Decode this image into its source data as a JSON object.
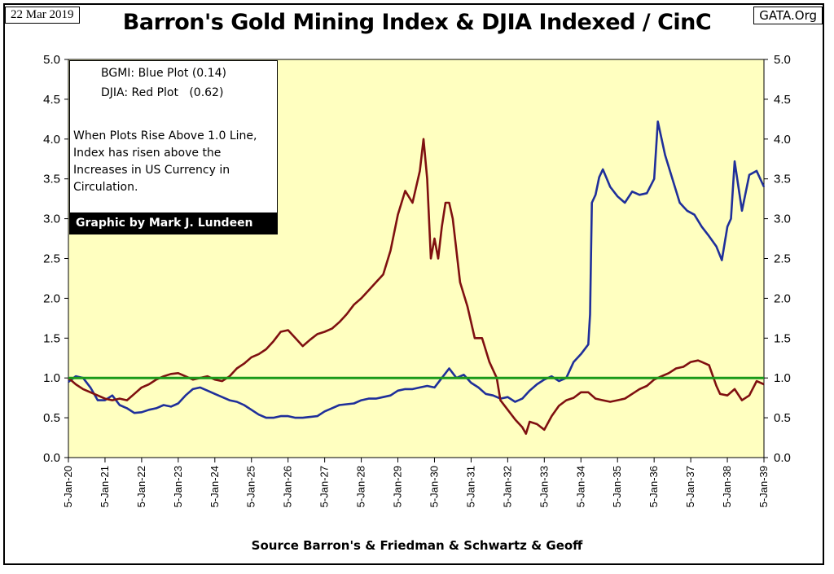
{
  "header": {
    "date": "22 Mar 2019",
    "title": "Barron's Gold Mining Index & DJIA Indexed / CinC",
    "site": "GATA.Org"
  },
  "legend": {
    "line1": "BGMI: Blue Plot (0.14)",
    "line2": "DJIA: Red Plot   (0.62)",
    "note": "When Plots Rise Above 1.0 Line, Index has risen above the Increases in US Currency in Circulation.",
    "credit": "Graphic by Mark J. Lundeen"
  },
  "footer": {
    "source": "Source Barron's & Friedman & Schwartz & Geoff"
  },
  "colors": {
    "plot_bg": "#ffffc0",
    "bgmi": "#1f2f9a",
    "djia": "#7f1010",
    "reference_line": "#1a9a1a"
  },
  "chart_data": {
    "type": "line",
    "title": "Barron's Gold Mining Index & DJIA Indexed / CinC",
    "xlabel": "",
    "ylabel": "",
    "x_tick_labels": [
      "5-Jan-20",
      "5-Jan-21",
      "5-Jan-22",
      "5-Jan-23",
      "5-Jan-24",
      "5-Jan-25",
      "5-Jan-26",
      "5-Jan-27",
      "5-Jan-28",
      "5-Jan-29",
      "5-Jan-30",
      "5-Jan-31",
      "5-Jan-32",
      "5-Jan-33",
      "5-Jan-34",
      "5-Jan-35",
      "5-Jan-36",
      "5-Jan-37",
      "5-Jan-38",
      "5-Jan-39"
    ],
    "y_tick_labels": [
      "0.0",
      "0.5",
      "1.0",
      "1.5",
      "2.0",
      "2.5",
      "3.0",
      "3.5",
      "4.0",
      "4.5",
      "5.0"
    ],
    "xlim": [
      1920,
      1939
    ],
    "ylim": [
      0,
      5
    ],
    "grid": false,
    "reference_line": 1.0,
    "series": [
      {
        "name": "BGMI",
        "color": "#1f2f9a",
        "points": [
          [
            1920.0,
            0.95
          ],
          [
            1920.2,
            1.02
          ],
          [
            1920.4,
            1.0
          ],
          [
            1920.6,
            0.88
          ],
          [
            1920.8,
            0.72
          ],
          [
            1921.0,
            0.72
          ],
          [
            1921.2,
            0.78
          ],
          [
            1921.4,
            0.66
          ],
          [
            1921.6,
            0.62
          ],
          [
            1921.8,
            0.56
          ],
          [
            1922.0,
            0.57
          ],
          [
            1922.2,
            0.6
          ],
          [
            1922.4,
            0.62
          ],
          [
            1922.6,
            0.66
          ],
          [
            1922.8,
            0.64
          ],
          [
            1923.0,
            0.68
          ],
          [
            1923.2,
            0.78
          ],
          [
            1923.4,
            0.86
          ],
          [
            1923.6,
            0.88
          ],
          [
            1923.8,
            0.84
          ],
          [
            1924.0,
            0.8
          ],
          [
            1924.2,
            0.76
          ],
          [
            1924.4,
            0.72
          ],
          [
            1924.6,
            0.7
          ],
          [
            1924.8,
            0.66
          ],
          [
            1925.0,
            0.6
          ],
          [
            1925.2,
            0.54
          ],
          [
            1925.4,
            0.5
          ],
          [
            1925.6,
            0.5
          ],
          [
            1925.8,
            0.52
          ],
          [
            1926.0,
            0.52
          ],
          [
            1926.2,
            0.5
          ],
          [
            1926.4,
            0.5
          ],
          [
            1926.6,
            0.51
          ],
          [
            1926.8,
            0.52
          ],
          [
            1927.0,
            0.58
          ],
          [
            1927.2,
            0.62
          ],
          [
            1927.4,
            0.66
          ],
          [
            1927.6,
            0.67
          ],
          [
            1927.8,
            0.68
          ],
          [
            1928.0,
            0.72
          ],
          [
            1928.2,
            0.74
          ],
          [
            1928.4,
            0.74
          ],
          [
            1928.6,
            0.76
          ],
          [
            1928.8,
            0.78
          ],
          [
            1929.0,
            0.84
          ],
          [
            1929.2,
            0.86
          ],
          [
            1929.4,
            0.86
          ],
          [
            1929.6,
            0.88
          ],
          [
            1929.8,
            0.9
          ],
          [
            1930.0,
            0.88
          ],
          [
            1930.2,
            1.0
          ],
          [
            1930.4,
            1.12
          ],
          [
            1930.6,
            1.0
          ],
          [
            1930.8,
            1.04
          ],
          [
            1931.0,
            0.94
          ],
          [
            1931.2,
            0.88
          ],
          [
            1931.4,
            0.8
          ],
          [
            1931.6,
            0.78
          ],
          [
            1931.8,
            0.74
          ],
          [
            1932.0,
            0.76
          ],
          [
            1932.2,
            0.7
          ],
          [
            1932.4,
            0.74
          ],
          [
            1932.6,
            0.84
          ],
          [
            1932.8,
            0.92
          ],
          [
            1933.0,
            0.98
          ],
          [
            1933.2,
            1.02
          ],
          [
            1933.4,
            0.96
          ],
          [
            1933.6,
            1.0
          ],
          [
            1933.8,
            1.2
          ],
          [
            1934.0,
            1.3
          ],
          [
            1934.2,
            1.42
          ],
          [
            1934.25,
            1.8
          ],
          [
            1934.3,
            3.2
          ],
          [
            1934.4,
            3.3
          ],
          [
            1934.5,
            3.52
          ],
          [
            1934.6,
            3.62
          ],
          [
            1934.8,
            3.4
          ],
          [
            1935.0,
            3.28
          ],
          [
            1935.2,
            3.2
          ],
          [
            1935.4,
            3.34
          ],
          [
            1935.6,
            3.3
          ],
          [
            1935.8,
            3.32
          ],
          [
            1936.0,
            3.5
          ],
          [
            1936.1,
            4.22
          ],
          [
            1936.3,
            3.8
          ],
          [
            1936.5,
            3.5
          ],
          [
            1936.7,
            3.2
          ],
          [
            1936.9,
            3.1
          ],
          [
            1937.1,
            3.05
          ],
          [
            1937.3,
            2.9
          ],
          [
            1937.5,
            2.78
          ],
          [
            1937.7,
            2.65
          ],
          [
            1937.85,
            2.48
          ],
          [
            1938.0,
            2.9
          ],
          [
            1938.1,
            3.0
          ],
          [
            1938.2,
            3.72
          ],
          [
            1938.4,
            3.1
          ],
          [
            1938.6,
            3.55
          ],
          [
            1938.8,
            3.6
          ],
          [
            1939.0,
            3.4
          ]
        ]
      },
      {
        "name": "DJIA",
        "color": "#7f1010",
        "points": [
          [
            1920.0,
            1.0
          ],
          [
            1920.2,
            0.92
          ],
          [
            1920.4,
            0.86
          ],
          [
            1920.6,
            0.82
          ],
          [
            1920.8,
            0.78
          ],
          [
            1921.0,
            0.74
          ],
          [
            1921.2,
            0.72
          ],
          [
            1921.4,
            0.74
          ],
          [
            1921.6,
            0.72
          ],
          [
            1921.8,
            0.8
          ],
          [
            1922.0,
            0.88
          ],
          [
            1922.2,
            0.92
          ],
          [
            1922.4,
            0.98
          ],
          [
            1922.6,
            1.02
          ],
          [
            1922.8,
            1.05
          ],
          [
            1923.0,
            1.06
          ],
          [
            1923.2,
            1.02
          ],
          [
            1923.4,
            0.98
          ],
          [
            1923.6,
            1.0
          ],
          [
            1923.8,
            1.02
          ],
          [
            1924.0,
            0.98
          ],
          [
            1924.2,
            0.96
          ],
          [
            1924.4,
            1.02
          ],
          [
            1924.6,
            1.12
          ],
          [
            1924.8,
            1.18
          ],
          [
            1925.0,
            1.26
          ],
          [
            1925.2,
            1.3
          ],
          [
            1925.4,
            1.36
          ],
          [
            1925.6,
            1.46
          ],
          [
            1925.8,
            1.58
          ],
          [
            1926.0,
            1.6
          ],
          [
            1926.2,
            1.5
          ],
          [
            1926.4,
            1.4
          ],
          [
            1926.6,
            1.48
          ],
          [
            1926.8,
            1.55
          ],
          [
            1927.0,
            1.58
          ],
          [
            1927.2,
            1.62
          ],
          [
            1927.4,
            1.7
          ],
          [
            1927.6,
            1.8
          ],
          [
            1927.8,
            1.92
          ],
          [
            1928.0,
            2.0
          ],
          [
            1928.2,
            2.1
          ],
          [
            1928.4,
            2.2
          ],
          [
            1928.6,
            2.3
          ],
          [
            1928.8,
            2.6
          ],
          [
            1929.0,
            3.05
          ],
          [
            1929.2,
            3.35
          ],
          [
            1929.4,
            3.2
          ],
          [
            1929.6,
            3.6
          ],
          [
            1929.7,
            4.0
          ],
          [
            1929.8,
            3.5
          ],
          [
            1929.9,
            2.5
          ],
          [
            1930.0,
            2.75
          ],
          [
            1930.1,
            2.5
          ],
          [
            1930.2,
            2.9
          ],
          [
            1930.3,
            3.2
          ],
          [
            1930.4,
            3.2
          ],
          [
            1930.5,
            3.0
          ],
          [
            1930.7,
            2.2
          ],
          [
            1930.9,
            1.9
          ],
          [
            1931.1,
            1.5
          ],
          [
            1931.3,
            1.5
          ],
          [
            1931.5,
            1.2
          ],
          [
            1931.7,
            1.0
          ],
          [
            1931.8,
            0.72
          ],
          [
            1932.0,
            0.6
          ],
          [
            1932.2,
            0.48
          ],
          [
            1932.4,
            0.38
          ],
          [
            1932.5,
            0.3
          ],
          [
            1932.6,
            0.45
          ],
          [
            1932.8,
            0.42
          ],
          [
            1933.0,
            0.35
          ],
          [
            1933.2,
            0.52
          ],
          [
            1933.4,
            0.65
          ],
          [
            1933.6,
            0.72
          ],
          [
            1933.8,
            0.75
          ],
          [
            1934.0,
            0.82
          ],
          [
            1934.2,
            0.82
          ],
          [
            1934.4,
            0.74
          ],
          [
            1934.6,
            0.72
          ],
          [
            1934.8,
            0.7
          ],
          [
            1935.0,
            0.72
          ],
          [
            1935.2,
            0.74
          ],
          [
            1935.4,
            0.8
          ],
          [
            1935.6,
            0.86
          ],
          [
            1935.8,
            0.9
          ],
          [
            1936.0,
            0.98
          ],
          [
            1936.2,
            1.02
          ],
          [
            1936.4,
            1.06
          ],
          [
            1936.6,
            1.12
          ],
          [
            1936.8,
            1.14
          ],
          [
            1937.0,
            1.2
          ],
          [
            1937.2,
            1.22
          ],
          [
            1937.3,
            1.2
          ],
          [
            1937.5,
            1.16
          ],
          [
            1937.7,
            0.9
          ],
          [
            1937.8,
            0.8
          ],
          [
            1938.0,
            0.78
          ],
          [
            1938.2,
            0.86
          ],
          [
            1938.4,
            0.72
          ],
          [
            1938.6,
            0.78
          ],
          [
            1938.8,
            0.96
          ],
          [
            1939.0,
            0.92
          ]
        ]
      }
    ]
  }
}
